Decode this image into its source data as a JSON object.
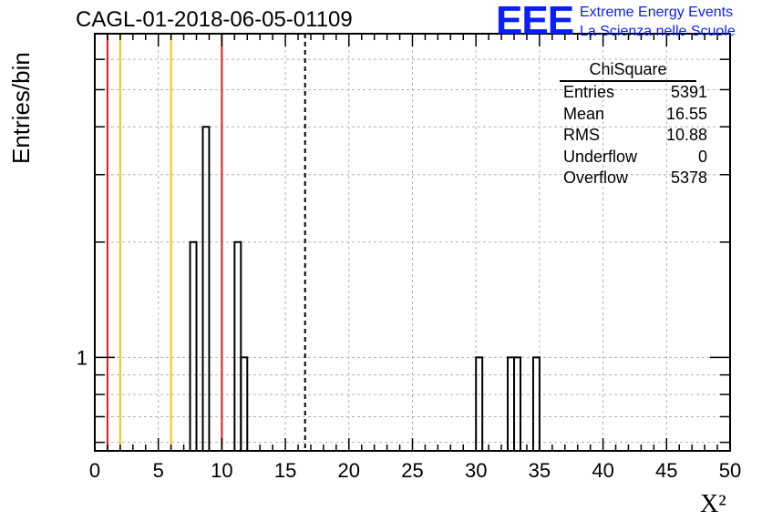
{
  "title": "CAGL-01-2018-06-05-01109",
  "logo": {
    "mark": "EEE",
    "line1": "Extreme Energy Events",
    "line2": "La Scienza nelle Scuole"
  },
  "stats": {
    "name": "ChiSquare",
    "rows": [
      {
        "label": "Entries",
        "value": "5391"
      },
      {
        "label": "Mean",
        "value": "16.55"
      },
      {
        "label": "RMS",
        "value": "10.88"
      },
      {
        "label": "Underflow",
        "value": "0"
      },
      {
        "label": "Overflow",
        "value": "5378"
      }
    ]
  },
  "colors": {
    "red_line": "#e31a1c",
    "yellow_line": "#f5c518",
    "grid": "#b4b4b4"
  },
  "chart_data": {
    "type": "histogram",
    "ylabel": "Entries/bin",
    "xlabel": "X²",
    "xlim": [
      0,
      50
    ],
    "ylim": [
      0.57,
      7.0
    ],
    "yscale": "log",
    "bin_width": 0.5,
    "grid": true,
    "legend": "top-right",
    "x_ticks": [
      0,
      5,
      10,
      15,
      20,
      25,
      30,
      35,
      40,
      45,
      50
    ],
    "y_tick_labels": [
      {
        "value": 1,
        "label": "1"
      }
    ],
    "bins": [
      {
        "x": 7.5,
        "count": 2
      },
      {
        "x": 8.5,
        "count": 4
      },
      {
        "x": 11.0,
        "count": 2
      },
      {
        "x": 11.5,
        "count": 1
      },
      {
        "x": 30.0,
        "count": 1
      },
      {
        "x": 32.5,
        "count": 1
      },
      {
        "x": 33.0,
        "count": 1
      },
      {
        "x": 34.5,
        "count": 1
      }
    ],
    "vertical_lines": [
      {
        "x": 1,
        "color": "red",
        "style": "solid"
      },
      {
        "x": 2,
        "color": "yellow",
        "style": "solid"
      },
      {
        "x": 6,
        "color": "yellow",
        "style": "solid"
      },
      {
        "x": 10,
        "color": "red",
        "style": "solid"
      },
      {
        "x": 16.55,
        "color": "black",
        "style": "dashed"
      }
    ]
  }
}
